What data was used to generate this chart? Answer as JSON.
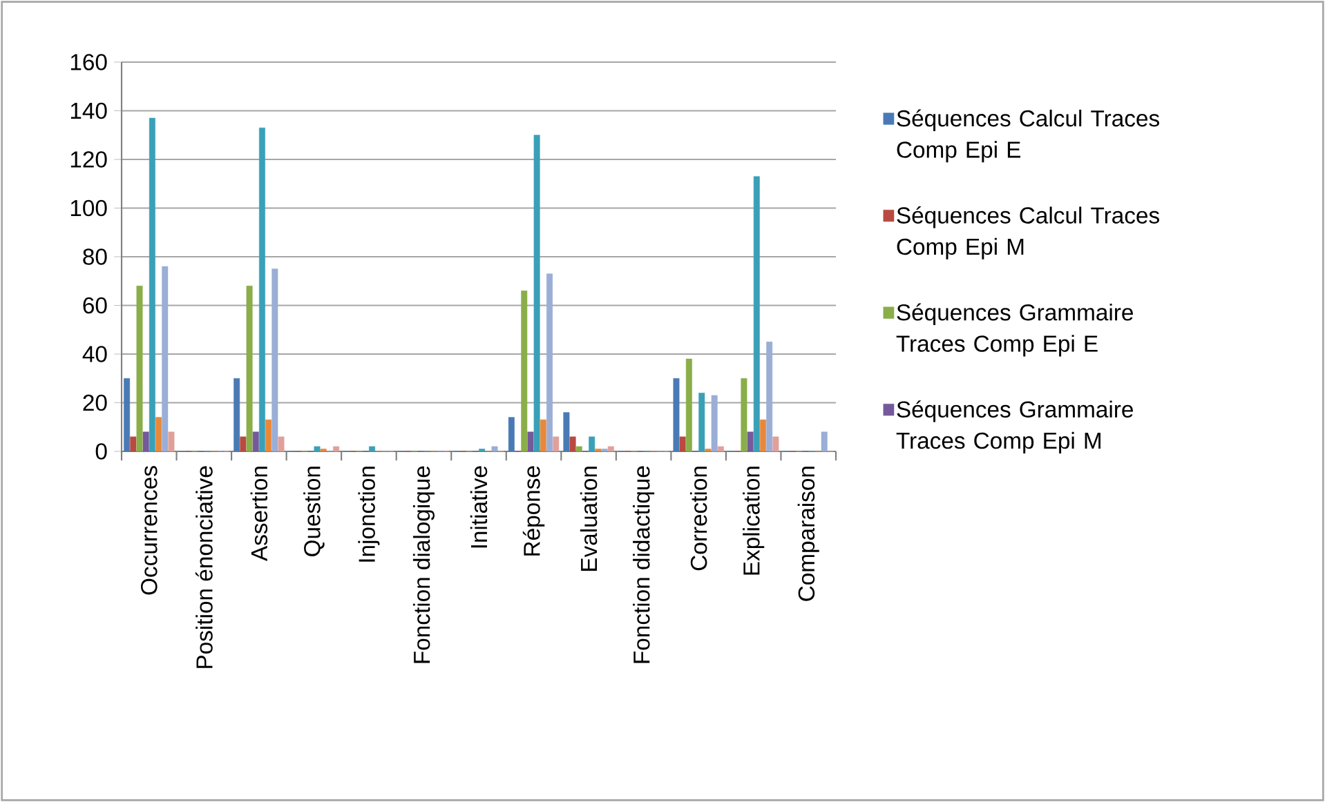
{
  "chart_data": {
    "type": "bar",
    "categories": [
      "Occurrences",
      "Position énonciative",
      "Assertion",
      "Question",
      "Injonction",
      "Fonction dialogique",
      "Initiative",
      "Réponse",
      "Evaluation",
      "Fonction didactique",
      "Correction",
      "Explication",
      "Comparaison"
    ],
    "series": [
      {
        "name": "Séquences Calcul Traces Comp Epi E",
        "color": "#4a7ab5",
        "values": [
          30,
          0,
          30,
          0,
          0,
          0,
          0,
          14,
          16,
          0,
          30,
          0,
          0
        ]
      },
      {
        "name": "Séquences Calcul Traces Comp Epi M",
        "color": "#b84a42",
        "values": [
          6,
          0,
          6,
          0,
          0,
          0,
          0,
          0,
          6,
          0,
          6,
          0,
          0
        ]
      },
      {
        "name": "Séquences Grammaire Traces Comp Epi E",
        "color": "#8aae48",
        "values": [
          68,
          0,
          68,
          0,
          0,
          0,
          0,
          66,
          2,
          0,
          38,
          30,
          0
        ]
      },
      {
        "name": "Séquences Grammaire Traces Comp Epi M",
        "color": "#745a9a",
        "values": [
          8,
          0,
          8,
          0,
          0,
          0,
          0,
          8,
          0,
          0,
          0,
          8,
          0
        ]
      },
      {
        "color": "#3aa0b8",
        "values": [
          137,
          0,
          133,
          2,
          2,
          0,
          1,
          130,
          6,
          0,
          24,
          113,
          0
        ]
      },
      {
        "color": "#e8883a",
        "values": [
          14,
          0,
          13,
          1,
          0,
          0,
          0,
          13,
          1,
          0,
          1,
          13,
          0
        ]
      },
      {
        "color": "#9aaed6",
        "values": [
          76,
          0,
          75,
          0,
          0,
          0,
          2,
          73,
          1,
          0,
          23,
          45,
          8
        ]
      },
      {
        "color": "#e0a09a",
        "values": [
          8,
          0,
          6,
          2,
          0,
          0,
          0,
          6,
          2,
          0,
          2,
          6,
          0
        ]
      }
    ],
    "ylim": [
      0,
      160
    ],
    "yticks": [
      0,
      20,
      40,
      60,
      80,
      100,
      120,
      140,
      160
    ],
    "grid": "y",
    "legend": "right"
  }
}
